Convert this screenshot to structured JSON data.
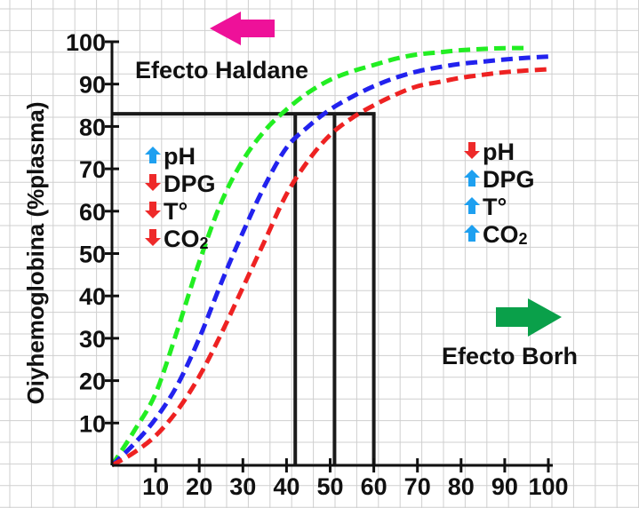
{
  "chart_data": {
    "type": "line",
    "title": "",
    "xlabel": "",
    "ylabel": "Oiyhemoglobina (%plasma)",
    "xlim": [
      0,
      100
    ],
    "ylim": [
      0,
      100
    ],
    "grid": true,
    "x_ticks": [
      10,
      20,
      30,
      40,
      50,
      60,
      70,
      80,
      90,
      100
    ],
    "y_ticks": [
      10,
      20,
      30,
      40,
      50,
      60,
      70,
      80,
      90,
      100
    ],
    "series": [
      {
        "color": "#22ee22",
        "x": [
          0,
          5,
          10,
          15,
          20,
          25,
          30,
          35,
          40,
          45,
          50,
          55,
          60,
          65,
          70,
          75,
          80,
          85,
          90,
          95
        ],
        "y": [
          0,
          8,
          17,
          32,
          48,
          62,
          72,
          79,
          84,
          88,
          91,
          93,
          94.5,
          96,
          97,
          97.5,
          98,
          98.3,
          98.5,
          98.5
        ]
      },
      {
        "color": "#2222ee",
        "x": [
          0,
          5,
          10,
          15,
          20,
          25,
          30,
          35,
          40,
          45,
          50,
          55,
          60,
          65,
          70,
          75,
          80,
          85,
          90,
          95,
          100
        ],
        "y": [
          0,
          5,
          11,
          19,
          30,
          43,
          55,
          66,
          75,
          80,
          84,
          87,
          89.5,
          91.5,
          93,
          94,
          94.8,
          95.3,
          95.8,
          96.2,
          96.5
        ]
      },
      {
        "color": "#ee2222",
        "x": [
          0,
          5,
          10,
          15,
          20,
          25,
          30,
          35,
          40,
          45,
          50,
          55,
          60,
          65,
          70,
          75,
          80,
          85,
          90,
          95,
          100
        ],
        "y": [
          0,
          3,
          7,
          13,
          21,
          31,
          42,
          53,
          64,
          72,
          78,
          82,
          85,
          87.5,
          89.5,
          90.5,
          91.5,
          92.2,
          92.8,
          93.2,
          93.5
        ]
      }
    ],
    "reference_lines": {
      "y": 83,
      "x": [
        42,
        51,
        60
      ]
    },
    "annotations": {
      "haldane": "Efecto Haldane",
      "bohr": "Efecto Borh",
      "left_factors": [
        {
          "label": "pH",
          "direction": "up",
          "color": "#1ea0f0"
        },
        {
          "label": "DPG",
          "direction": "down",
          "color": "#ee2a2a"
        },
        {
          "label": "T°",
          "direction": "down",
          "color": "#ee2a2a"
        },
        {
          "label": "CO",
          "sub": "2",
          "direction": "down",
          "color": "#ee2a2a"
        }
      ],
      "right_factors": [
        {
          "label": "pH",
          "direction": "down",
          "color": "#ee2a2a"
        },
        {
          "label": "DPG",
          "direction": "up",
          "color": "#1ea0f0"
        },
        {
          "label": "T°",
          "direction": "up",
          "color": "#1ea0f0"
        },
        {
          "label": "CO",
          "sub": "2",
          "direction": "up",
          "color": "#1ea0f0"
        }
      ],
      "left_arrow_color": "#ee1199",
      "right_arrow_color": "#0aa04a"
    }
  }
}
